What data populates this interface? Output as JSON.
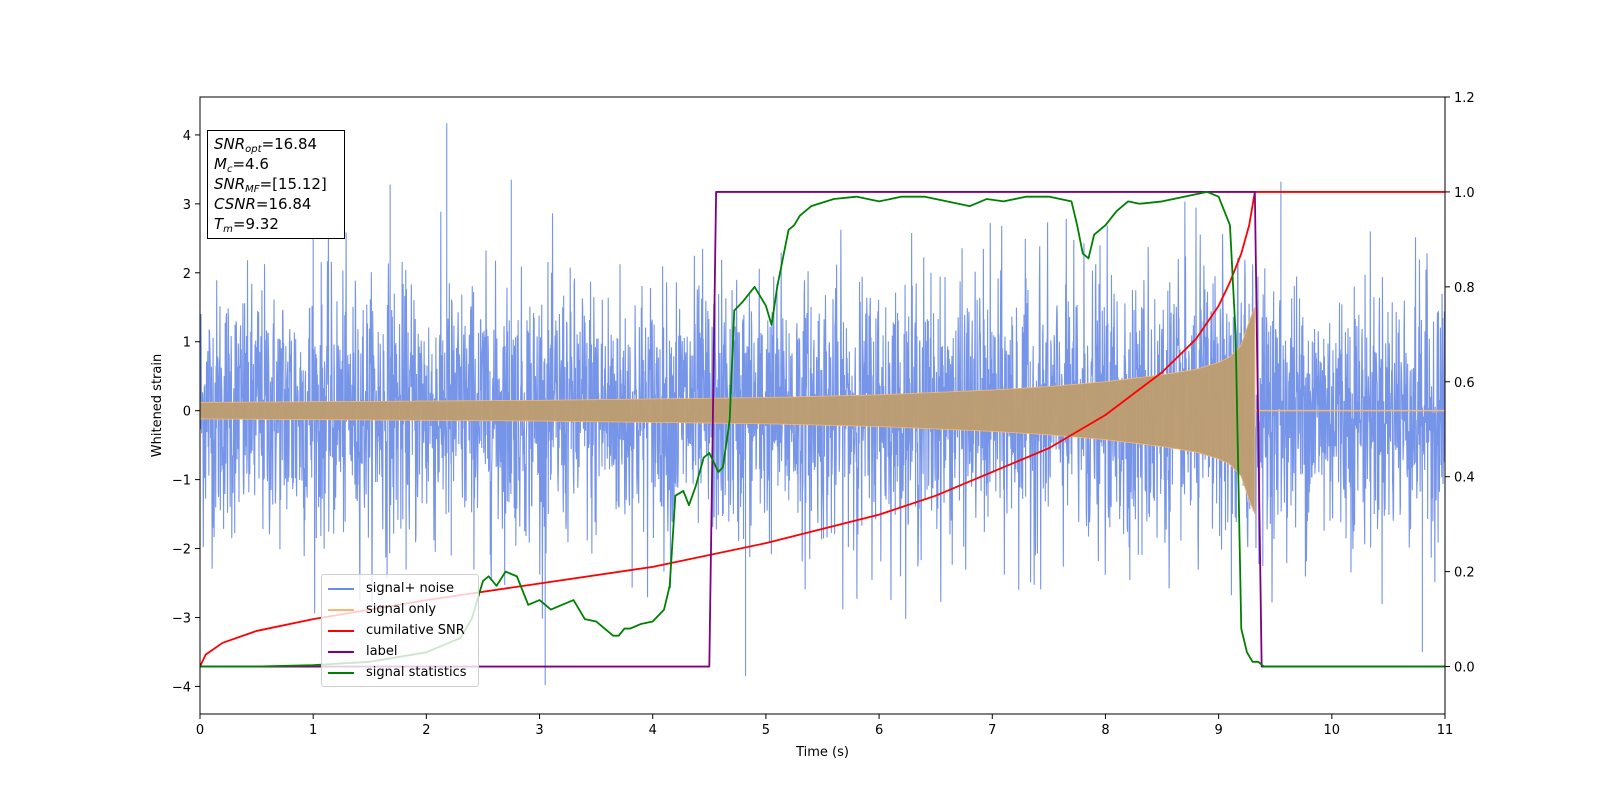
{
  "chart_data": {
    "type": "line",
    "title": "",
    "xlabel": "Time (s)",
    "ylabel": "Whitened strain",
    "y2label": "",
    "xlim": [
      0,
      11
    ],
    "ylim": [
      -4.4,
      4.55
    ],
    "y2lim": [
      -0.1,
      1.2
    ],
    "x_ticks": [
      "0",
      "1",
      "2",
      "3",
      "4",
      "5",
      "6",
      "7",
      "8",
      "9",
      "10",
      "11"
    ],
    "y_ticks": [
      -4,
      -3,
      -2,
      -1,
      0,
      1,
      2,
      3,
      4
    ],
    "y_tick_labels": [
      "−4",
      "−3",
      "−2",
      "−1",
      "0",
      "1",
      "2",
      "3",
      "4"
    ],
    "y2_ticks": [
      0.0,
      0.2,
      0.4,
      0.6,
      0.8,
      1.0,
      1.2
    ],
    "y2_tick_labels": [
      "0.0",
      "0.2",
      "0.4",
      "0.6",
      "0.8",
      "1.0",
      "1.2"
    ],
    "grid": false,
    "legend_placement": "lower-left",
    "annotation": {
      "snr_opt": {
        "sym": "SNR",
        "sub": "opt",
        "value": "=16.84"
      },
      "mc": {
        "sym": "M",
        "sub": "c",
        "value": "=4.6"
      },
      "snr_mf": {
        "sym": "SNR",
        "sub": "MF",
        "value": "=[15.12]"
      },
      "csnr": {
        "sym": "CSNR",
        "value": "=16.84"
      },
      "tm": {
        "sym": "T",
        "sub": "m",
        "value": "=9.32"
      }
    },
    "series": [
      {
        "name": "signal+ noise",
        "axis": "left",
        "color": "#6a8be6",
        "description": "noise band with envelope",
        "noise_sigma": 1.0,
        "spikes": [
          [
            2.18,
            4.17
          ],
          [
            2.22,
            -2.1
          ],
          [
            3.05,
            -3.98
          ],
          [
            4.82,
            -3.85
          ],
          [
            9.55,
            3.32
          ],
          [
            10.8,
            -3.5
          ],
          [
            1.0,
            3.15
          ],
          [
            2.75,
            3.35
          ],
          [
            1.68,
            3.28
          ]
        ]
      },
      {
        "name": "signal only",
        "axis": "left",
        "color": "#f5b872",
        "description": "chirp envelope amplitude vs time",
        "x": [
          0,
          1,
          2,
          3,
          4,
          5,
          6,
          7,
          7.5,
          8,
          8.5,
          8.8,
          9.0,
          9.1,
          9.2,
          9.27,
          9.32
        ],
        "amplitude": [
          0.12,
          0.13,
          0.14,
          0.15,
          0.17,
          0.19,
          0.23,
          0.3,
          0.35,
          0.42,
          0.52,
          0.6,
          0.7,
          0.78,
          0.95,
          1.3,
          1.5
        ]
      },
      {
        "name": "cumilative SNR",
        "axis": "right",
        "color": "#ff0000",
        "x": [
          0,
          0.05,
          0.2,
          0.5,
          1,
          1.5,
          2,
          3,
          4,
          5,
          5.5,
          6,
          6.5,
          7,
          7.5,
          8,
          8.5,
          8.8,
          9.0,
          9.1,
          9.2,
          9.27,
          9.32,
          11
        ],
        "y": [
          0.0,
          0.025,
          0.05,
          0.075,
          0.1,
          0.12,
          0.14,
          0.175,
          0.21,
          0.26,
          0.29,
          0.32,
          0.36,
          0.41,
          0.46,
          0.53,
          0.62,
          0.69,
          0.76,
          0.81,
          0.87,
          0.93,
          1.0,
          1.0
        ]
      },
      {
        "name": "label",
        "axis": "right",
        "color": "#800080",
        "x": [
          0,
          4.5,
          4.56,
          9.32,
          9.38,
          11
        ],
        "y": [
          0.0,
          0.0,
          1.0,
          1.0,
          0.0,
          0.0
        ]
      },
      {
        "name": "signal statistics",
        "axis": "right",
        "color": "#008000",
        "x": [
          0,
          0.5,
          1,
          1.5,
          2.0,
          2.3,
          2.4,
          2.5,
          2.55,
          2.62,
          2.7,
          2.8,
          2.9,
          3.0,
          3.1,
          3.2,
          3.3,
          3.4,
          3.5,
          3.65,
          3.7,
          3.75,
          3.8,
          3.9,
          4.0,
          4.1,
          4.15,
          4.2,
          4.27,
          4.32,
          4.38,
          4.45,
          4.5,
          4.58,
          4.62,
          4.68,
          4.72,
          4.8,
          4.9,
          4.95,
          5.0,
          5.05,
          5.1,
          5.2,
          5.25,
          5.3,
          5.4,
          5.6,
          5.8,
          6.0,
          6.2,
          6.4,
          6.6,
          6.8,
          6.95,
          7.1,
          7.3,
          7.5,
          7.7,
          7.75,
          7.8,
          7.85,
          7.9,
          8.0,
          8.1,
          8.2,
          8.3,
          8.5,
          8.7,
          8.9,
          9.0,
          9.1,
          9.15,
          9.2,
          9.25,
          9.3,
          9.35,
          9.4,
          9.5,
          11
        ],
        "y": [
          0.0,
          0.0,
          0.003,
          0.01,
          0.03,
          0.06,
          0.1,
          0.18,
          0.19,
          0.17,
          0.2,
          0.19,
          0.13,
          0.14,
          0.12,
          0.13,
          0.14,
          0.1,
          0.095,
          0.065,
          0.065,
          0.08,
          0.08,
          0.09,
          0.095,
          0.12,
          0.17,
          0.36,
          0.37,
          0.34,
          0.38,
          0.44,
          0.45,
          0.41,
          0.42,
          0.52,
          0.75,
          0.77,
          0.8,
          0.78,
          0.76,
          0.72,
          0.8,
          0.92,
          0.93,
          0.95,
          0.97,
          0.985,
          0.99,
          0.98,
          0.99,
          0.99,
          0.98,
          0.97,
          0.985,
          0.98,
          0.99,
          0.99,
          0.98,
          0.93,
          0.87,
          0.86,
          0.91,
          0.93,
          0.96,
          0.98,
          0.975,
          0.98,
          0.99,
          1.0,
          0.99,
          0.93,
          0.7,
          0.08,
          0.03,
          0.01,
          0.01,
          0.0,
          0.0,
          0.0
        ]
      }
    ]
  }
}
